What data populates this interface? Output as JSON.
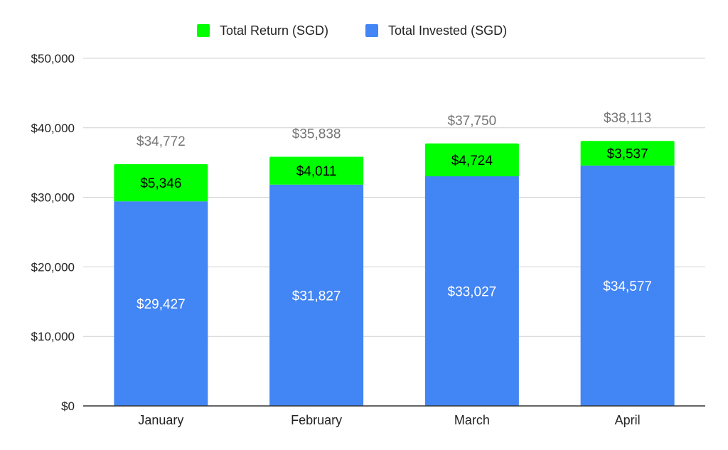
{
  "chart_data": {
    "type": "bar",
    "stacked": true,
    "categories": [
      "January",
      "February",
      "March",
      "April"
    ],
    "series": [
      {
        "name": "Total Invested (SGD)",
        "color": "#4285f4",
        "values": [
          29427,
          31827,
          33027,
          34577
        ],
        "labels": [
          "$29,427",
          "$31,827",
          "$33,027",
          "$34,577"
        ]
      },
      {
        "name": "Total Return (SGD)",
        "color": "#00ff00",
        "values": [
          5346,
          4011,
          4724,
          3537
        ],
        "labels": [
          "$5,346",
          "$4,011",
          "$4,724",
          "$3,537"
        ]
      }
    ],
    "totals": [
      34772,
      35838,
      37750,
      38113
    ],
    "total_labels": [
      "$34,772",
      "$35,838",
      "$37,750",
      "$38,113"
    ],
    "ylim": [
      0,
      50000
    ],
    "yticks": [
      0,
      10000,
      20000,
      30000,
      40000,
      50000
    ],
    "ytick_labels": [
      "$0",
      "$10,000",
      "$20,000",
      "$30,000",
      "$40,000",
      "$50,000"
    ],
    "grid": true,
    "legend_position": "top-center",
    "legend": [
      {
        "label": "Total Return (SGD)",
        "color": "#00ff00"
      },
      {
        "label": "Total Invested (SGD)",
        "color": "#4285f4"
      }
    ]
  }
}
